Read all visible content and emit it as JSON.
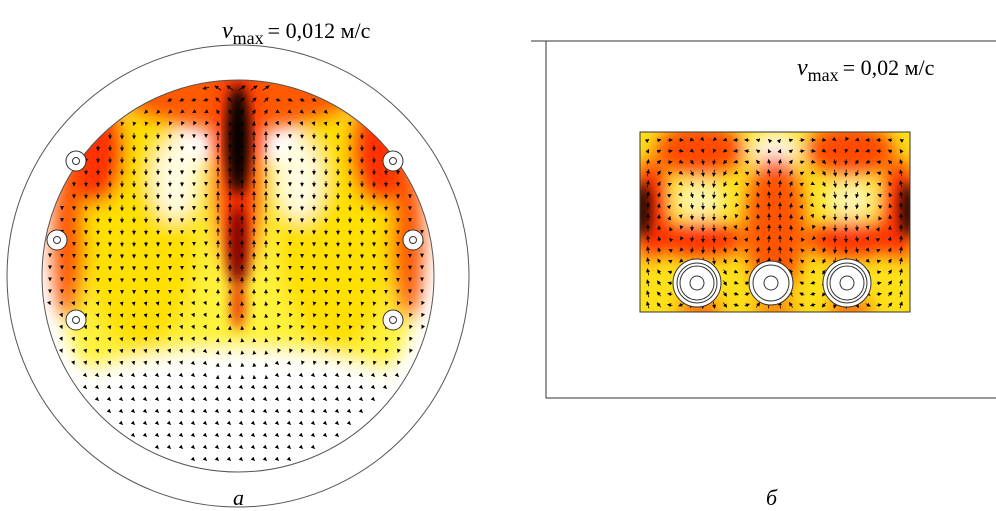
{
  "panel_a": {
    "v_symbol": "v",
    "v_subscript": "max",
    "value_text": "= 0,012 м/с",
    "caption": "а"
  },
  "panel_b": {
    "v_symbol": "v",
    "v_subscript": "max",
    "value_text": "= 0,02 м/с",
    "caption": "б"
  },
  "colors": {
    "low": "#ffffff",
    "mid": "#ffff00",
    "high": "#ff3300",
    "peak": "#000000",
    "arrow": "#000000"
  }
}
